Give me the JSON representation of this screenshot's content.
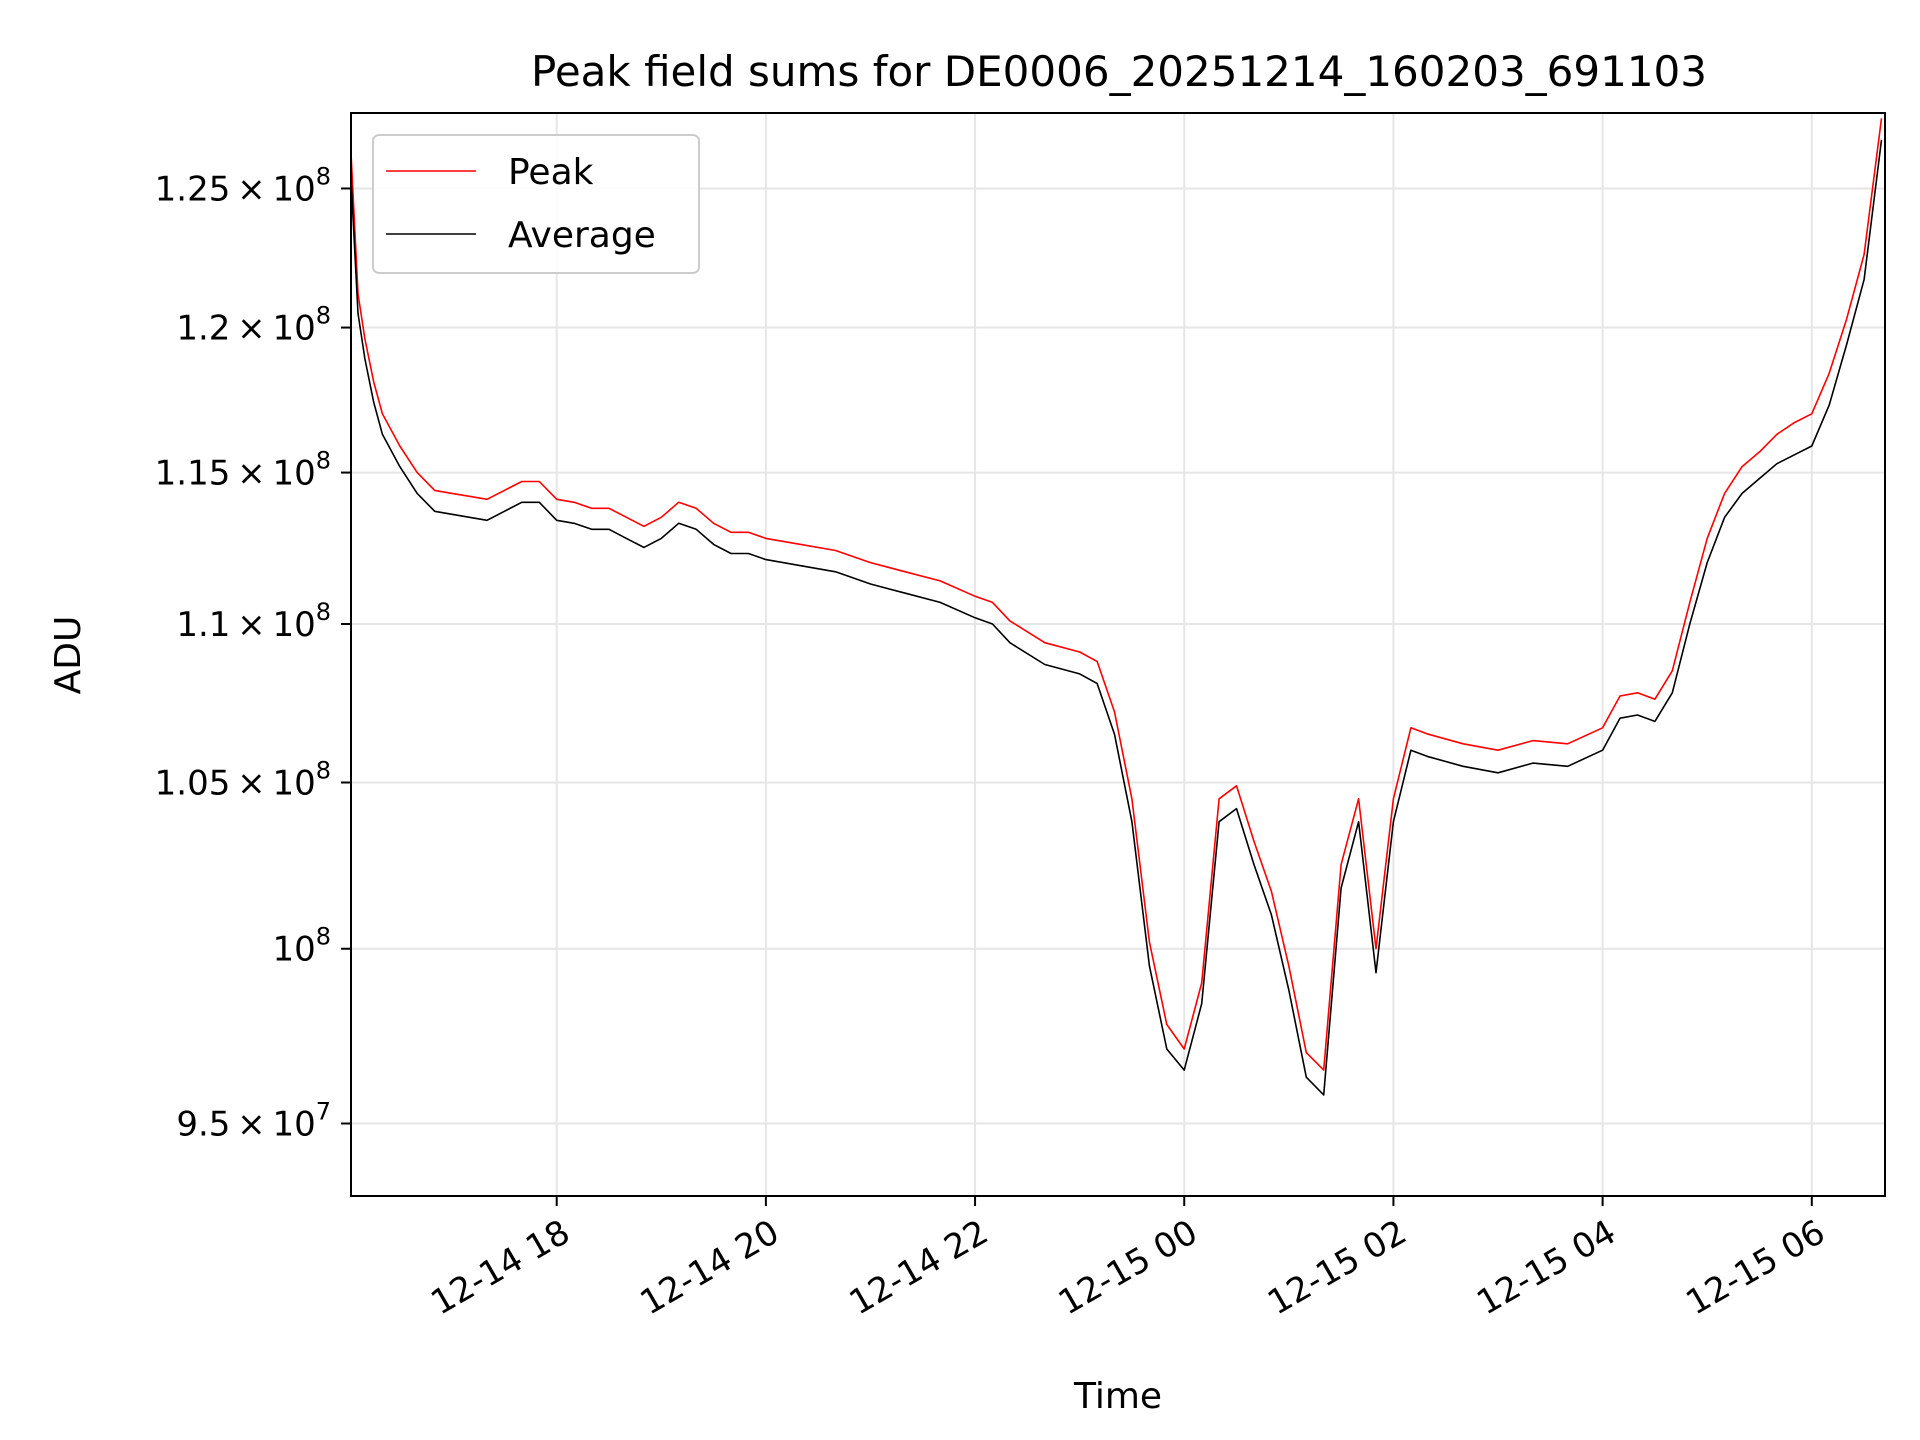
{
  "chart_data": {
    "type": "line",
    "title": "Peak field sums for DE0006_20251214_160203_691103",
    "xlabel": "Time",
    "ylabel": "ADU",
    "y_scale": "log",
    "x_range": [
      "2025-12-14 16:02",
      "2025-12-15 06:42"
    ],
    "ylim": [
      93000000,
      127800000
    ],
    "grid": true,
    "legend_position": "upper-left",
    "x_ticks": [
      {
        "label": "12-14 18",
        "value": "2025-12-14 18:00"
      },
      {
        "label": "12-14 20",
        "value": "2025-12-14 20:00"
      },
      {
        "label": "12-14 22",
        "value": "2025-12-14 22:00"
      },
      {
        "label": "12-15 00",
        "value": "2025-12-15 00:00"
      },
      {
        "label": "12-15 02",
        "value": "2025-12-15 02:00"
      },
      {
        "label": "12-15 04",
        "value": "2025-12-15 04:00"
      },
      {
        "label": "12-15 06",
        "value": "2025-12-15 06:00"
      }
    ],
    "y_ticks": [
      {
        "value": 95000000,
        "mantissa": "9.5",
        "exponent": "7"
      },
      {
        "value": 100000000,
        "mantissa": "",
        "exponent": "8"
      },
      {
        "value": 105000000,
        "mantissa": "1.05",
        "exponent": "8"
      },
      {
        "value": 110000000,
        "mantissa": "1.1",
        "exponent": "8"
      },
      {
        "value": 115000000,
        "mantissa": "1.15",
        "exponent": "8"
      },
      {
        "value": 120000000,
        "mantissa": "1.2",
        "exponent": "8"
      },
      {
        "value": 125000000,
        "mantissa": "1.25",
        "exponent": "8"
      }
    ],
    "series": [
      {
        "name": "Peak",
        "color": "#ff0000",
        "x": [
          "2025-12-14 16:02",
          "2025-12-14 16:06",
          "2025-12-14 16:10",
          "2025-12-14 16:15",
          "2025-12-14 16:20",
          "2025-12-14 16:30",
          "2025-12-14 16:40",
          "2025-12-14 16:50",
          "2025-12-14 17:00",
          "2025-12-14 17:10",
          "2025-12-14 17:20",
          "2025-12-14 17:30",
          "2025-12-14 17:40",
          "2025-12-14 17:50",
          "2025-12-14 18:00",
          "2025-12-14 18:10",
          "2025-12-14 18:20",
          "2025-12-14 18:30",
          "2025-12-14 18:40",
          "2025-12-14 18:50",
          "2025-12-14 19:00",
          "2025-12-14 19:10",
          "2025-12-14 19:20",
          "2025-12-14 19:30",
          "2025-12-14 19:40",
          "2025-12-14 19:50",
          "2025-12-14 20:00",
          "2025-12-14 20:20",
          "2025-12-14 20:40",
          "2025-12-14 21:00",
          "2025-12-14 21:20",
          "2025-12-14 21:40",
          "2025-12-14 22:00",
          "2025-12-14 22:10",
          "2025-12-14 22:20",
          "2025-12-14 22:40",
          "2025-12-14 23:00",
          "2025-12-14 23:10",
          "2025-12-14 23:20",
          "2025-12-14 23:30",
          "2025-12-14 23:40",
          "2025-12-14 23:50",
          "2025-12-15 00:00",
          "2025-12-15 00:10",
          "2025-12-15 00:20",
          "2025-12-15 00:30",
          "2025-12-15 00:40",
          "2025-12-15 00:50",
          "2025-12-15 01:00",
          "2025-12-15 01:10",
          "2025-12-15 01:20",
          "2025-12-15 01:30",
          "2025-12-15 01:40",
          "2025-12-15 01:50",
          "2025-12-15 02:00",
          "2025-12-15 02:10",
          "2025-12-15 02:20",
          "2025-12-15 02:40",
          "2025-12-15 03:00",
          "2025-12-15 03:20",
          "2025-12-15 03:40",
          "2025-12-15 04:00",
          "2025-12-15 04:10",
          "2025-12-15 04:20",
          "2025-12-15 04:30",
          "2025-12-15 04:40",
          "2025-12-15 04:50",
          "2025-12-15 05:00",
          "2025-12-15 05:10",
          "2025-12-15 05:20",
          "2025-12-15 05:30",
          "2025-12-15 05:40",
          "2025-12-15 05:50",
          "2025-12-15 06:00",
          "2025-12-15 06:10",
          "2025-12-15 06:20",
          "2025-12-15 06:30",
          "2025-12-15 06:40"
        ],
        "values": [
          126300000,
          121200000,
          119600000,
          118100000,
          117000000,
          115900000,
          115000000,
          114400000,
          114300000,
          114200000,
          114100000,
          114400000,
          114700000,
          114700000,
          114100000,
          114000000,
          113800000,
          113800000,
          113500000,
          113200000,
          113500000,
          114000000,
          113800000,
          113300000,
          113000000,
          113000000,
          112800000,
          112600000,
          112400000,
          112000000,
          111700000,
          111400000,
          110900000,
          110700000,
          110100000,
          109400000,
          109100000,
          108800000,
          107200000,
          104500000,
          100200000,
          97800000,
          97100000,
          99000000,
          104500000,
          104900000,
          103200000,
          101700000,
          99500000,
          97000000,
          96500000,
          102500000,
          104500000,
          100000000,
          104500000,
          106700000,
          106500000,
          106200000,
          106000000,
          106300000,
          106200000,
          106700000,
          107700000,
          107800000,
          107600000,
          108500000,
          110700000,
          112800000,
          114300000,
          115200000,
          115700000,
          116300000,
          116700000,
          117000000,
          118400000,
          120300000,
          122600000,
          127600000
        ]
      },
      {
        "name": "Average",
        "color": "#000000",
        "x": [
          "2025-12-14 16:02",
          "2025-12-14 16:06",
          "2025-12-14 16:10",
          "2025-12-14 16:15",
          "2025-12-14 16:20",
          "2025-12-14 16:30",
          "2025-12-14 16:40",
          "2025-12-14 16:50",
          "2025-12-14 17:00",
          "2025-12-14 17:10",
          "2025-12-14 17:20",
          "2025-12-14 17:30",
          "2025-12-14 17:40",
          "2025-12-14 17:50",
          "2025-12-14 18:00",
          "2025-12-14 18:10",
          "2025-12-14 18:20",
          "2025-12-14 18:30",
          "2025-12-14 18:40",
          "2025-12-14 18:50",
          "2025-12-14 19:00",
          "2025-12-14 19:10",
          "2025-12-14 19:20",
          "2025-12-14 19:30",
          "2025-12-14 19:40",
          "2025-12-14 19:50",
          "2025-12-14 20:00",
          "2025-12-14 20:20",
          "2025-12-14 20:40",
          "2025-12-14 21:00",
          "2025-12-14 21:20",
          "2025-12-14 21:40",
          "2025-12-14 22:00",
          "2025-12-14 22:10",
          "2025-12-14 22:20",
          "2025-12-14 22:40",
          "2025-12-14 23:00",
          "2025-12-14 23:10",
          "2025-12-14 23:20",
          "2025-12-14 23:30",
          "2025-12-14 23:40",
          "2025-12-14 23:50",
          "2025-12-15 00:00",
          "2025-12-15 00:10",
          "2025-12-15 00:20",
          "2025-12-15 00:30",
          "2025-12-15 00:40",
          "2025-12-15 00:50",
          "2025-12-15 01:00",
          "2025-12-15 01:10",
          "2025-12-15 01:20",
          "2025-12-15 01:30",
          "2025-12-15 01:40",
          "2025-12-15 01:50",
          "2025-12-15 02:00",
          "2025-12-15 02:10",
          "2025-12-15 02:20",
          "2025-12-15 02:40",
          "2025-12-15 03:00",
          "2025-12-15 03:20",
          "2025-12-15 03:40",
          "2025-12-15 04:00",
          "2025-12-15 04:10",
          "2025-12-15 04:20",
          "2025-12-15 04:30",
          "2025-12-15 04:40",
          "2025-12-15 04:50",
          "2025-12-15 05:00",
          "2025-12-15 05:10",
          "2025-12-15 05:20",
          "2025-12-15 05:30",
          "2025-12-15 05:40",
          "2025-12-15 05:50",
          "2025-12-15 06:00",
          "2025-12-15 06:10",
          "2025-12-15 06:20",
          "2025-12-15 06:30",
          "2025-12-15 06:40"
        ],
        "values": [
          125400000,
          120500000,
          118900000,
          117400000,
          116300000,
          115200000,
          114300000,
          113700000,
          113600000,
          113500000,
          113400000,
          113700000,
          114000000,
          114000000,
          113400000,
          113300000,
          113100000,
          113100000,
          112800000,
          112500000,
          112800000,
          113300000,
          113100000,
          112600000,
          112300000,
          112300000,
          112100000,
          111900000,
          111700000,
          111300000,
          111000000,
          110700000,
          110200000,
          110000000,
          109400000,
          108700000,
          108400000,
          108100000,
          106500000,
          103800000,
          99500000,
          97100000,
          96500000,
          98400000,
          103800000,
          104200000,
          102500000,
          101000000,
          98800000,
          96300000,
          95800000,
          101800000,
          103800000,
          99300000,
          103800000,
          106000000,
          105800000,
          105500000,
          105300000,
          105600000,
          105500000,
          106000000,
          107000000,
          107100000,
          106900000,
          107800000,
          110000000,
          112000000,
          113500000,
          114300000,
          114800000,
          115300000,
          115600000,
          115900000,
          117300000,
          119400000,
          121700000,
          126800000
        ]
      }
    ]
  }
}
